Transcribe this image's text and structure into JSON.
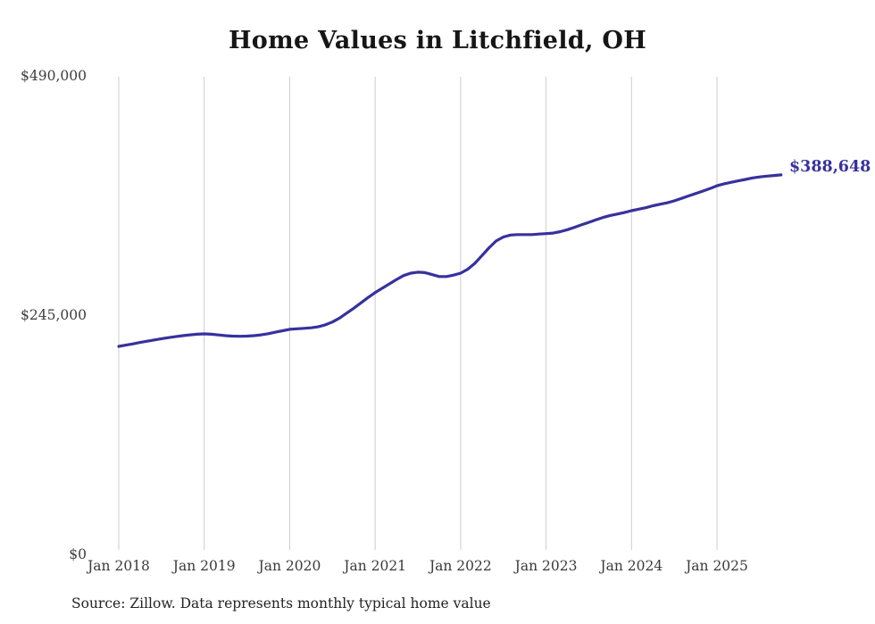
{
  "page": {
    "title": "Home Values in Litchfield, OH",
    "source_note": "Source: Zillow. Data represents monthly typical home value"
  },
  "colors": {
    "line": "#37319e",
    "end_label": "#37319e",
    "gridline": "#cccccc",
    "title_text": "#161616",
    "axis_text": "#3d3d3d",
    "background": "#ffffff"
  },
  "chart_data": {
    "type": "line",
    "title": "Home Values in Litchfield, OH",
    "xlabel": "",
    "ylabel": "",
    "ylim": [
      0,
      490000
    ],
    "grid": "vertical-only",
    "legend_position": "none",
    "x_start": "Jan 2018",
    "x_end": "Oct 2025",
    "x_frequency": "monthly",
    "x_tick_labels": [
      "Jan 2018",
      "Jan 2019",
      "Jan 2020",
      "Jan 2021",
      "Jan 2022",
      "Jan 2023",
      "Jan 2024",
      "Jan 2025"
    ],
    "y_axis": [
      {
        "label": "$0",
        "value": 0
      },
      {
        "label": "$245,000",
        "value": 245000
      },
      {
        "label": "$490,000",
        "value": 490000
      }
    ],
    "end_label": "$388,648",
    "end_value": 388648,
    "series": [
      {
        "name": "Typical home value",
        "values": [
          213000,
          214300,
          215600,
          217000,
          218300,
          219600,
          220900,
          222000,
          223000,
          224000,
          224800,
          225400,
          225800,
          225400,
          224700,
          224000,
          223500,
          223300,
          223500,
          224000,
          224800,
          226000,
          227500,
          229000,
          230500,
          231000,
          231500,
          232000,
          233000,
          235000,
          238000,
          242000,
          247000,
          252000,
          257500,
          263000,
          268000,
          272500,
          277000,
          281500,
          285500,
          288000,
          289000,
          288500,
          286500,
          284500,
          284500,
          286000,
          288000,
          292000,
          298000,
          306000,
          314000,
          321000,
          325000,
          327000,
          327500,
          327500,
          327500,
          328000,
          328500,
          329000,
          330500,
          332500,
          335000,
          337500,
          340000,
          342500,
          345000,
          347000,
          348500,
          350000,
          352000,
          353500,
          355000,
          357000,
          358500,
          360000,
          362000,
          364500,
          367000,
          369500,
          372000,
          374500,
          377500,
          379500,
          381000,
          382500,
          384000,
          385500,
          386500,
          387300,
          388000,
          388648
        ]
      }
    ]
  }
}
